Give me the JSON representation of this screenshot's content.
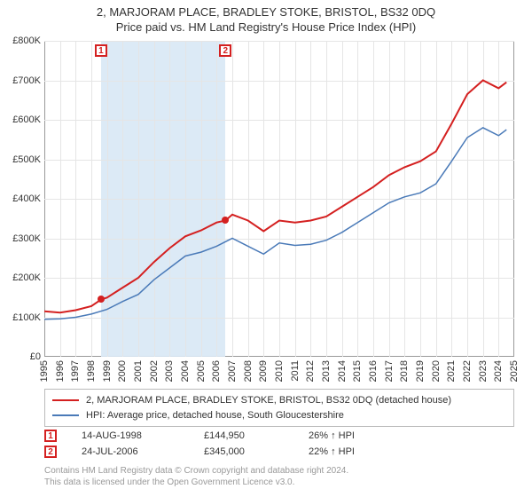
{
  "title_line1": "2, MARJORAM PLACE, BRADLEY STOKE, BRISTOL, BS32 0DQ",
  "title_line2": "Price paid vs. HM Land Registry's House Price Index (HPI)",
  "chart": {
    "type": "line",
    "x_min": 1995,
    "x_max": 2025,
    "y_min": 0,
    "y_max": 800000,
    "xtick_step": 1,
    "ytick_step": 100000,
    "ytick_labels": [
      "£0",
      "£100K",
      "£200K",
      "£300K",
      "£400K",
      "£500K",
      "£600K",
      "£700K",
      "£800K"
    ],
    "xtick_labels": [
      "1995",
      "1996",
      "1997",
      "1998",
      "1999",
      "2000",
      "2001",
      "2002",
      "2003",
      "2004",
      "2005",
      "2006",
      "2007",
      "2008",
      "2009",
      "2010",
      "2011",
      "2012",
      "2013",
      "2014",
      "2015",
      "2016",
      "2017",
      "2018",
      "2019",
      "2020",
      "2021",
      "2022",
      "2023",
      "2024",
      "2025"
    ],
    "background_color": "#ffffff",
    "grid_color": "#e5e5e5",
    "axis_color": "#999999",
    "shaded_band_color": "#d8e8f5",
    "shaded_band": {
      "from": 1998.62,
      "to": 2006.56
    },
    "series": [
      {
        "name": "property",
        "label": "2, MARJORAM PLACE, BRADLEY STOKE, BRISTOL, BS32 0DQ (detached house)",
        "color": "#d42020",
        "line_width": 2,
        "points": [
          [
            1995,
            115000
          ],
          [
            1996,
            112000
          ],
          [
            1997,
            118000
          ],
          [
            1998,
            128000
          ],
          [
            1998.62,
            144950
          ],
          [
            1999,
            150000
          ],
          [
            2000,
            175000
          ],
          [
            2001,
            200000
          ],
          [
            2002,
            240000
          ],
          [
            2003,
            275000
          ],
          [
            2004,
            305000
          ],
          [
            2005,
            320000
          ],
          [
            2006,
            340000
          ],
          [
            2006.56,
            345000
          ],
          [
            2007,
            360000
          ],
          [
            2008,
            345000
          ],
          [
            2009,
            318000
          ],
          [
            2010,
            345000
          ],
          [
            2011,
            340000
          ],
          [
            2012,
            345000
          ],
          [
            2013,
            355000
          ],
          [
            2014,
            380000
          ],
          [
            2015,
            405000
          ],
          [
            2016,
            430000
          ],
          [
            2017,
            460000
          ],
          [
            2018,
            480000
          ],
          [
            2019,
            495000
          ],
          [
            2020,
            520000
          ],
          [
            2021,
            590000
          ],
          [
            2022,
            665000
          ],
          [
            2023,
            700000
          ],
          [
            2024,
            680000
          ],
          [
            2024.5,
            695000
          ]
        ]
      },
      {
        "name": "hpi",
        "label": "HPI: Average price, detached house, South Gloucestershire",
        "color": "#4a7ab8",
        "line_width": 1.5,
        "points": [
          [
            1995,
            95000
          ],
          [
            1996,
            96000
          ],
          [
            1997,
            100000
          ],
          [
            1998,
            108000
          ],
          [
            1999,
            120000
          ],
          [
            2000,
            140000
          ],
          [
            2001,
            158000
          ],
          [
            2002,
            195000
          ],
          [
            2003,
            225000
          ],
          [
            2004,
            255000
          ],
          [
            2005,
            265000
          ],
          [
            2006,
            280000
          ],
          [
            2007,
            300000
          ],
          [
            2008,
            280000
          ],
          [
            2009,
            260000
          ],
          [
            2010,
            288000
          ],
          [
            2011,
            282000
          ],
          [
            2012,
            285000
          ],
          [
            2013,
            295000
          ],
          [
            2014,
            315000
          ],
          [
            2015,
            340000
          ],
          [
            2016,
            365000
          ],
          [
            2017,
            390000
          ],
          [
            2018,
            405000
          ],
          [
            2019,
            415000
          ],
          [
            2020,
            438000
          ],
          [
            2021,
            495000
          ],
          [
            2022,
            555000
          ],
          [
            2023,
            580000
          ],
          [
            2024,
            560000
          ],
          [
            2024.5,
            575000
          ]
        ]
      }
    ],
    "markers": [
      {
        "id": "1",
        "x": 1998.62,
        "y": 144950,
        "color": "#d42020"
      },
      {
        "id": "2",
        "x": 2006.56,
        "y": 345000,
        "color": "#d42020"
      }
    ],
    "title_fontsize": 13,
    "label_fontsize": 11
  },
  "legend": {
    "items": [
      {
        "color": "#d42020",
        "label": "2, MARJORAM PLACE, BRADLEY STOKE, BRISTOL, BS32 0DQ (detached house)"
      },
      {
        "color": "#4a7ab8",
        "label": "HPI: Average price, detached house, South Gloucestershire"
      }
    ]
  },
  "sales": [
    {
      "id": "1",
      "date": "14-AUG-1998",
      "price": "£144,950",
      "pct": "26% ↑ HPI"
    },
    {
      "id": "2",
      "date": "24-JUL-2006",
      "price": "£345,000",
      "pct": "22% ↑ HPI"
    }
  ],
  "footnote_line1": "Contains HM Land Registry data © Crown copyright and database right 2024.",
  "footnote_line2": "This data is licensed under the Open Government Licence v3.0."
}
